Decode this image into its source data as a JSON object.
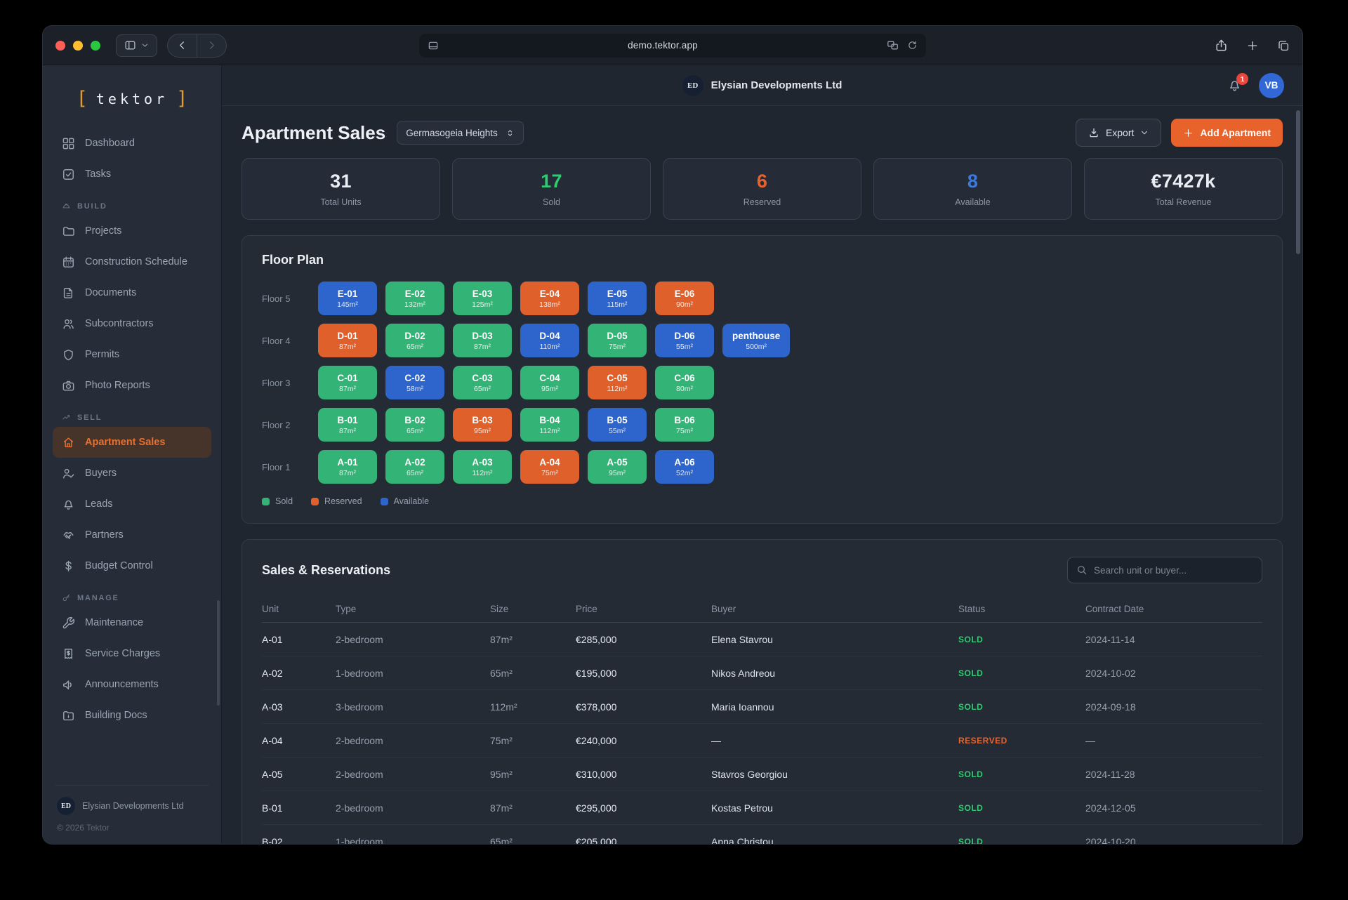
{
  "browser": {
    "url": "demo.tektor.app"
  },
  "brand": {
    "bracket_left": "[",
    "logo_text": "tektor",
    "bracket_right": "]",
    "accent_color": "#e09b31"
  },
  "sidebar": {
    "sections": [
      {
        "label": null,
        "items": [
          {
            "label": "Dashboard",
            "icon": "dashboard-icon"
          },
          {
            "label": "Tasks",
            "icon": "tasks-icon"
          }
        ]
      },
      {
        "label": "BUILD",
        "icon": "hardhat-icon",
        "items": [
          {
            "label": "Projects",
            "icon": "folder-icon"
          },
          {
            "label": "Construction Schedule",
            "icon": "calendar-icon"
          },
          {
            "label": "Documents",
            "icon": "document-icon"
          },
          {
            "label": "Subcontractors",
            "icon": "users-icon"
          },
          {
            "label": "Permits",
            "icon": "shield-icon"
          },
          {
            "label": "Photo Reports",
            "icon": "camera-icon"
          }
        ]
      },
      {
        "label": "SELL",
        "icon": "trend-up-icon",
        "items": [
          {
            "label": "Apartment Sales",
            "icon": "home-icon",
            "active": true
          },
          {
            "label": "Buyers",
            "icon": "user-check-icon"
          },
          {
            "label": "Leads",
            "icon": "bell-icon"
          },
          {
            "label": "Partners",
            "icon": "handshake-icon"
          },
          {
            "label": "Budget Control",
            "icon": "dollar-icon"
          }
        ]
      },
      {
        "label": "MANAGE",
        "icon": "key-icon",
        "items": [
          {
            "label": "Maintenance",
            "icon": "wrench-icon"
          },
          {
            "label": "Service Charges",
            "icon": "receipt-icon"
          },
          {
            "label": "Announcements",
            "icon": "megaphone-icon"
          },
          {
            "label": "Building Docs",
            "icon": "folder-docs-icon"
          }
        ]
      }
    ],
    "footer": {
      "initials": "ED",
      "company": "Elysian Developments Ltd",
      "copyright": "© 2026 Tektor"
    }
  },
  "header": {
    "company_initials": "ED",
    "company": "Elysian Developments Ltd",
    "notification_count": "1",
    "user_initials": "VB",
    "avatar_color": "#3268d6",
    "badge_color": "#e8473e"
  },
  "page": {
    "title": "Apartment Sales",
    "project_select": "Germasogeia Heights",
    "export_label": "Export",
    "add_label": "Add Apartment",
    "accent_color": "#e8622c"
  },
  "stats": [
    {
      "value": "31",
      "label": "Total Units",
      "color": "#e9edf4"
    },
    {
      "value": "17",
      "label": "Sold",
      "color": "#2ecc71"
    },
    {
      "value": "6",
      "label": "Reserved",
      "color": "#e8622c"
    },
    {
      "value": "8",
      "label": "Available",
      "color": "#3f7ad9"
    },
    {
      "value": "€7427k",
      "label": "Total Revenue",
      "color": "#e9edf4"
    }
  ],
  "floor_plan": {
    "title": "Floor Plan",
    "status_colors": {
      "sold": "#34b377",
      "reserved": "#e0602b",
      "available": "#2d65cd"
    },
    "floors": [
      {
        "label": "Floor 5",
        "units": [
          {
            "id": "E-01",
            "size": "145m²",
            "status": "available"
          },
          {
            "id": "E-02",
            "size": "132m²",
            "status": "sold"
          },
          {
            "id": "E-03",
            "size": "125m²",
            "status": "sold"
          },
          {
            "id": "E-04",
            "size": "138m²",
            "status": "reserved"
          },
          {
            "id": "E-05",
            "size": "115m²",
            "status": "available"
          },
          {
            "id": "E-06",
            "size": "90m²",
            "status": "reserved"
          }
        ]
      },
      {
        "label": "Floor 4",
        "units": [
          {
            "id": "D-01",
            "size": "87m²",
            "status": "reserved"
          },
          {
            "id": "D-02",
            "size": "65m²",
            "status": "sold"
          },
          {
            "id": "D-03",
            "size": "87m²",
            "status": "sold"
          },
          {
            "id": "D-04",
            "size": "110m²",
            "status": "available"
          },
          {
            "id": "D-05",
            "size": "75m²",
            "status": "sold"
          },
          {
            "id": "D-06",
            "size": "55m²",
            "status": "available"
          },
          {
            "id": "penthouse",
            "size": "500m²",
            "status": "available"
          }
        ]
      },
      {
        "label": "Floor 3",
        "units": [
          {
            "id": "C-01",
            "size": "87m²",
            "status": "sold"
          },
          {
            "id": "C-02",
            "size": "58m²",
            "status": "available"
          },
          {
            "id": "C-03",
            "size": "65m²",
            "status": "sold"
          },
          {
            "id": "C-04",
            "size": "95m²",
            "status": "sold"
          },
          {
            "id": "C-05",
            "size": "112m²",
            "status": "reserved"
          },
          {
            "id": "C-06",
            "size": "80m²",
            "status": "sold"
          }
        ]
      },
      {
        "label": "Floor 2",
        "units": [
          {
            "id": "B-01",
            "size": "87m²",
            "status": "sold"
          },
          {
            "id": "B-02",
            "size": "65m²",
            "status": "sold"
          },
          {
            "id": "B-03",
            "size": "95m²",
            "status": "reserved"
          },
          {
            "id": "B-04",
            "size": "112m²",
            "status": "sold"
          },
          {
            "id": "B-05",
            "size": "55m²",
            "status": "available"
          },
          {
            "id": "B-06",
            "size": "75m²",
            "status": "sold"
          }
        ]
      },
      {
        "label": "Floor 1",
        "units": [
          {
            "id": "A-01",
            "size": "87m²",
            "status": "sold"
          },
          {
            "id": "A-02",
            "size": "65m²",
            "status": "sold"
          },
          {
            "id": "A-03",
            "size": "112m²",
            "status": "sold"
          },
          {
            "id": "A-04",
            "size": "75m²",
            "status": "reserved"
          },
          {
            "id": "A-05",
            "size": "95m²",
            "status": "sold"
          },
          {
            "id": "A-06",
            "size": "52m²",
            "status": "available"
          }
        ]
      }
    ],
    "legend": [
      {
        "label": "Sold",
        "status": "sold"
      },
      {
        "label": "Reserved",
        "status": "reserved"
      },
      {
        "label": "Available",
        "status": "available"
      }
    ]
  },
  "sales": {
    "title": "Sales & Reservations",
    "search_placeholder": "Search unit or buyer...",
    "status_colors": {
      "SOLD": "#2ecc71",
      "RESERVED": "#e8622c"
    },
    "columns": [
      "Unit",
      "Type",
      "Size",
      "Price",
      "Buyer",
      "Status",
      "Contract Date"
    ],
    "rows": [
      [
        "A-01",
        "2-bedroom",
        "87m²",
        "€285,000",
        "Elena Stavrou",
        "SOLD",
        "2024-11-14"
      ],
      [
        "A-02",
        "1-bedroom",
        "65m²",
        "€195,000",
        "Nikos Andreou",
        "SOLD",
        "2024-10-02"
      ],
      [
        "A-03",
        "3-bedroom",
        "112m²",
        "€378,000",
        "Maria Ioannou",
        "SOLD",
        "2024-09-18"
      ],
      [
        "A-04",
        "2-bedroom",
        "75m²",
        "€240,000",
        "—",
        "RESERVED",
        "—"
      ],
      [
        "A-05",
        "2-bedroom",
        "95m²",
        "€310,000",
        "Stavros Georgiou",
        "SOLD",
        "2024-11-28"
      ],
      [
        "B-01",
        "2-bedroom",
        "87m²",
        "€295,000",
        "Kostas Petrou",
        "SOLD",
        "2024-12-05"
      ],
      [
        "B-02",
        "1-bedroom",
        "65m²",
        "€205,000",
        "Anna Christou",
        "SOLD",
        "2024-10-20"
      ]
    ]
  }
}
